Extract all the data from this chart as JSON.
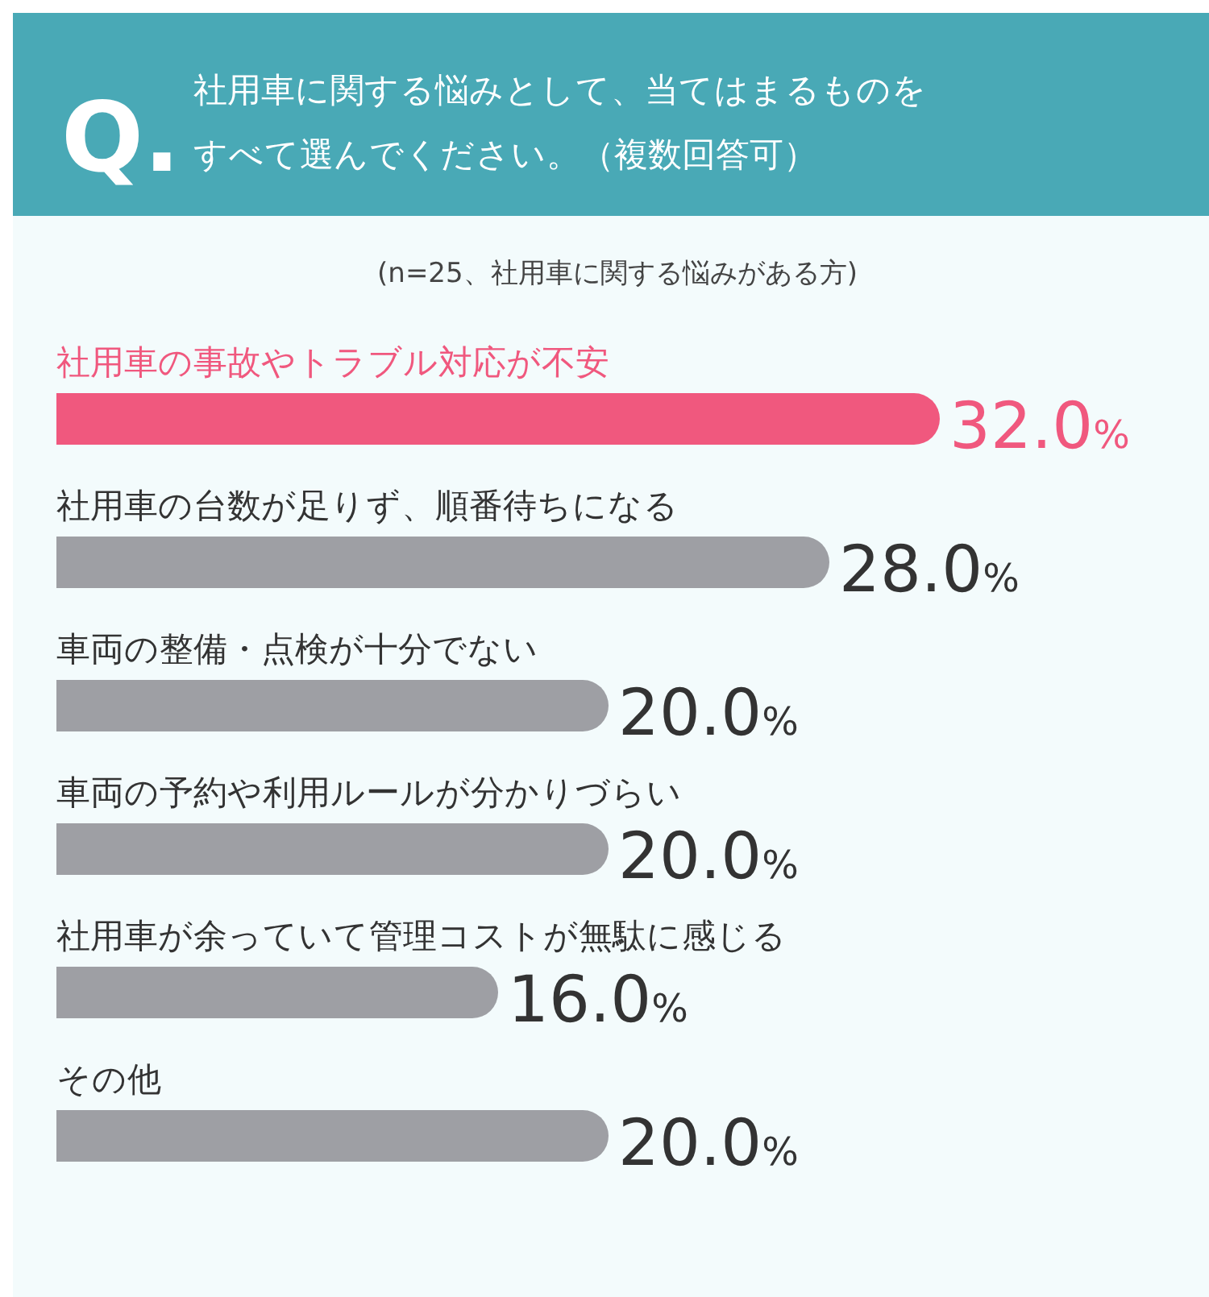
{
  "chart_data": {
    "type": "bar",
    "orientation": "horizontal",
    "title": "社用車に関する悩みとして、当てはまるものをすべて選んでください。（複数回答可）",
    "subtitle": "(n=25、社用車に関する悩みがある方)",
    "annotations": [
      "Q."
    ],
    "categories": [
      "社用車の事故やトラブル対応が不安",
      "社用車の台数が足りず、順番待ちになる",
      "車両の整備・点検が十分でない",
      "車両の予約や利用ルールが分かりづらい",
      "社用車が余っていて管理コストが無駄に感じる",
      "その他"
    ],
    "values": [
      32.0,
      28.0,
      20.0,
      20.0,
      16.0,
      20.0
    ],
    "colors": [
      "#f0587e",
      "#9e9fa4",
      "#9e9fa4",
      "#9e9fa4",
      "#9e9fa4",
      "#9e9fa4"
    ],
    "value_labels": [
      "32.0%",
      "28.0%",
      "20.0%",
      "20.0%",
      "16.0%",
      "20.0%"
    ]
  }
}
